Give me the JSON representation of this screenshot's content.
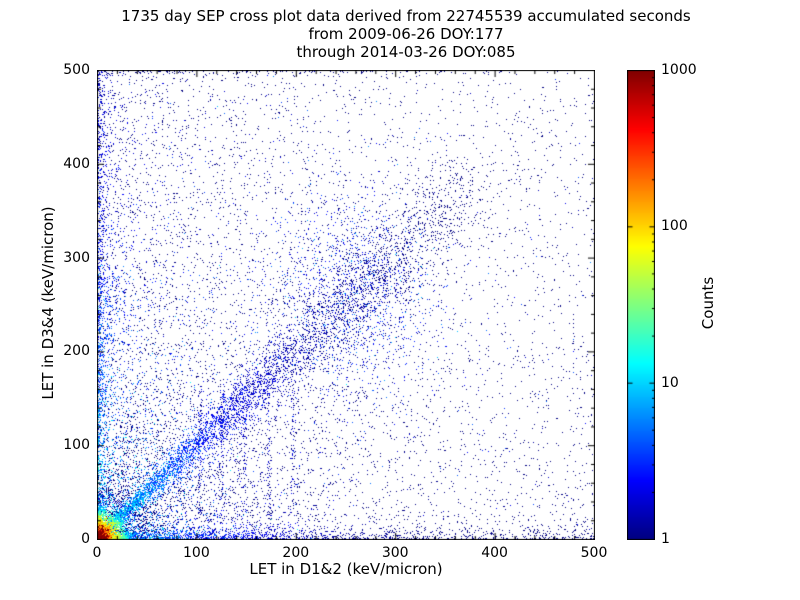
{
  "chart_data": {
    "type": "heatmap",
    "title": "1735 day SEP cross plot data derived from 22745539 accumulated seconds",
    "subtitle1": "from 2009-06-26 DOY:177",
    "subtitle2": "through 2014-03-26 DOY:085",
    "xlabel": "LET in D1&2 (keV/micron)",
    "ylabel": "LET in D3&4 (keV/micron)",
    "xlim": [
      0,
      500
    ],
    "ylim": [
      0,
      500
    ],
    "x_ticks": [
      0,
      100,
      200,
      300,
      400,
      500
    ],
    "y_ticks": [
      0,
      100,
      200,
      300,
      400,
      500
    ],
    "minor_tick_step": 20,
    "grid": false,
    "background_color": "#ffffff",
    "point_color_low": "#000080",
    "point_color_high": "#800000",
    "colorbar": {
      "label": "Counts",
      "scale": "log",
      "min": 1,
      "max": 1000,
      "ticks": [
        1,
        10,
        100,
        1000
      ],
      "colormap": "jet"
    },
    "density_features": [
      {
        "kind": "background",
        "n": 5500,
        "x_uniform_frac": 0.55,
        "x_exp_scale": 150,
        "y_low_frac": 0.35,
        "y_exp_scale": 220,
        "typical_count": 1
      },
      {
        "kind": "fan_below_diagonal",
        "n": 800,
        "scale": 120
      },
      {
        "kind": "fan_above_diagonal",
        "n": 800,
        "scale": 130
      },
      {
        "kind": "vertical_streaks",
        "x_positions": [
          104,
          126,
          149,
          173,
          197
        ],
        "y_range": [
          25,
          165
        ],
        "n_each": 70
      },
      {
        "kind": "top_edge_row",
        "n": 220,
        "y_depth": 2.2
      },
      {
        "kind": "diagonal_band",
        "n": 5200,
        "t_exp_scale": 105,
        "t_max": 380,
        "sigma0": 2,
        "sigma_slope": 0.075,
        "count_peak": 13,
        "count_decay": 55
      },
      {
        "kind": "cluster",
        "n": 1500,
        "x": 250,
        "y": 262,
        "sx": 45,
        "sy": 55,
        "count_scale": 1.6
      },
      {
        "kind": "left_column",
        "n": 2600,
        "x_scale": 5.5,
        "count_peak": 10,
        "count_decay_y": 170
      },
      {
        "kind": "bottom_row",
        "n": 2100,
        "y_scale": 5,
        "count_peak": 10,
        "count_decay_x": 70
      },
      {
        "kind": "origin_hotspot",
        "n": 9000,
        "x": 0,
        "y": 0,
        "r_scale": 10,
        "peak_count": 1000,
        "count_decay_r": 7
      },
      {
        "kind": "hot_core",
        "n": 900,
        "r_scale": 3.5,
        "count": 800
      }
    ]
  }
}
